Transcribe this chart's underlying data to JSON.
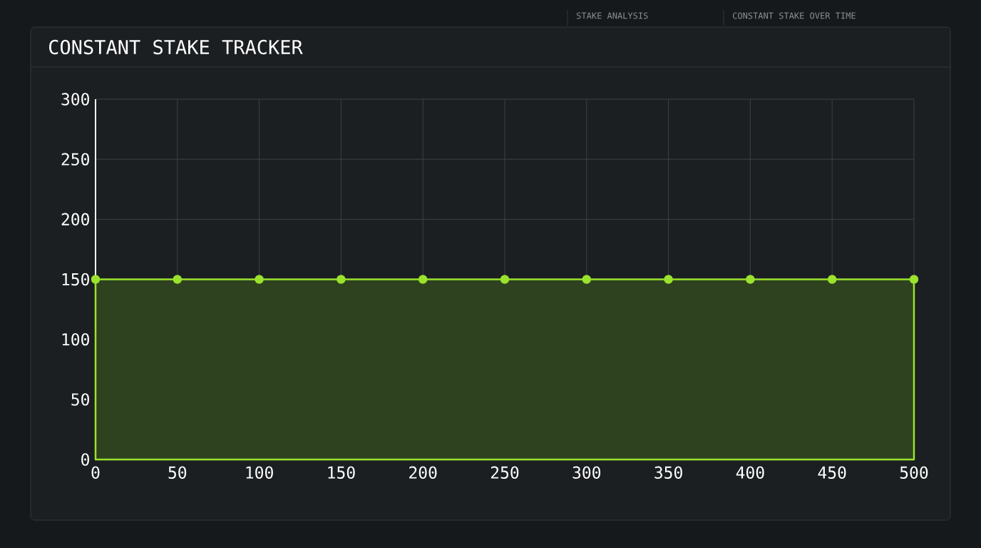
{
  "chart_data": {
    "type": "area",
    "title": "CONSTANT STAKE TRACKER",
    "annotations": [
      "STAKE ANALYSIS",
      "CONSTANT STAKE OVER TIME"
    ],
    "x": [
      0,
      50,
      100,
      150,
      200,
      250,
      300,
      350,
      400,
      450,
      500
    ],
    "values": [
      150,
      150,
      150,
      150,
      150,
      150,
      150,
      150,
      150,
      150,
      150
    ],
    "color": "#9be22d",
    "xlim": [
      0,
      500
    ],
    "ylim": [
      0,
      300
    ],
    "xticks": [
      0,
      50,
      100,
      150,
      200,
      250,
      300,
      350,
      400,
      450,
      500
    ],
    "yticks": [
      0,
      50,
      100,
      150,
      200,
      250,
      300
    ],
    "grid": true,
    "marker": "circle"
  }
}
